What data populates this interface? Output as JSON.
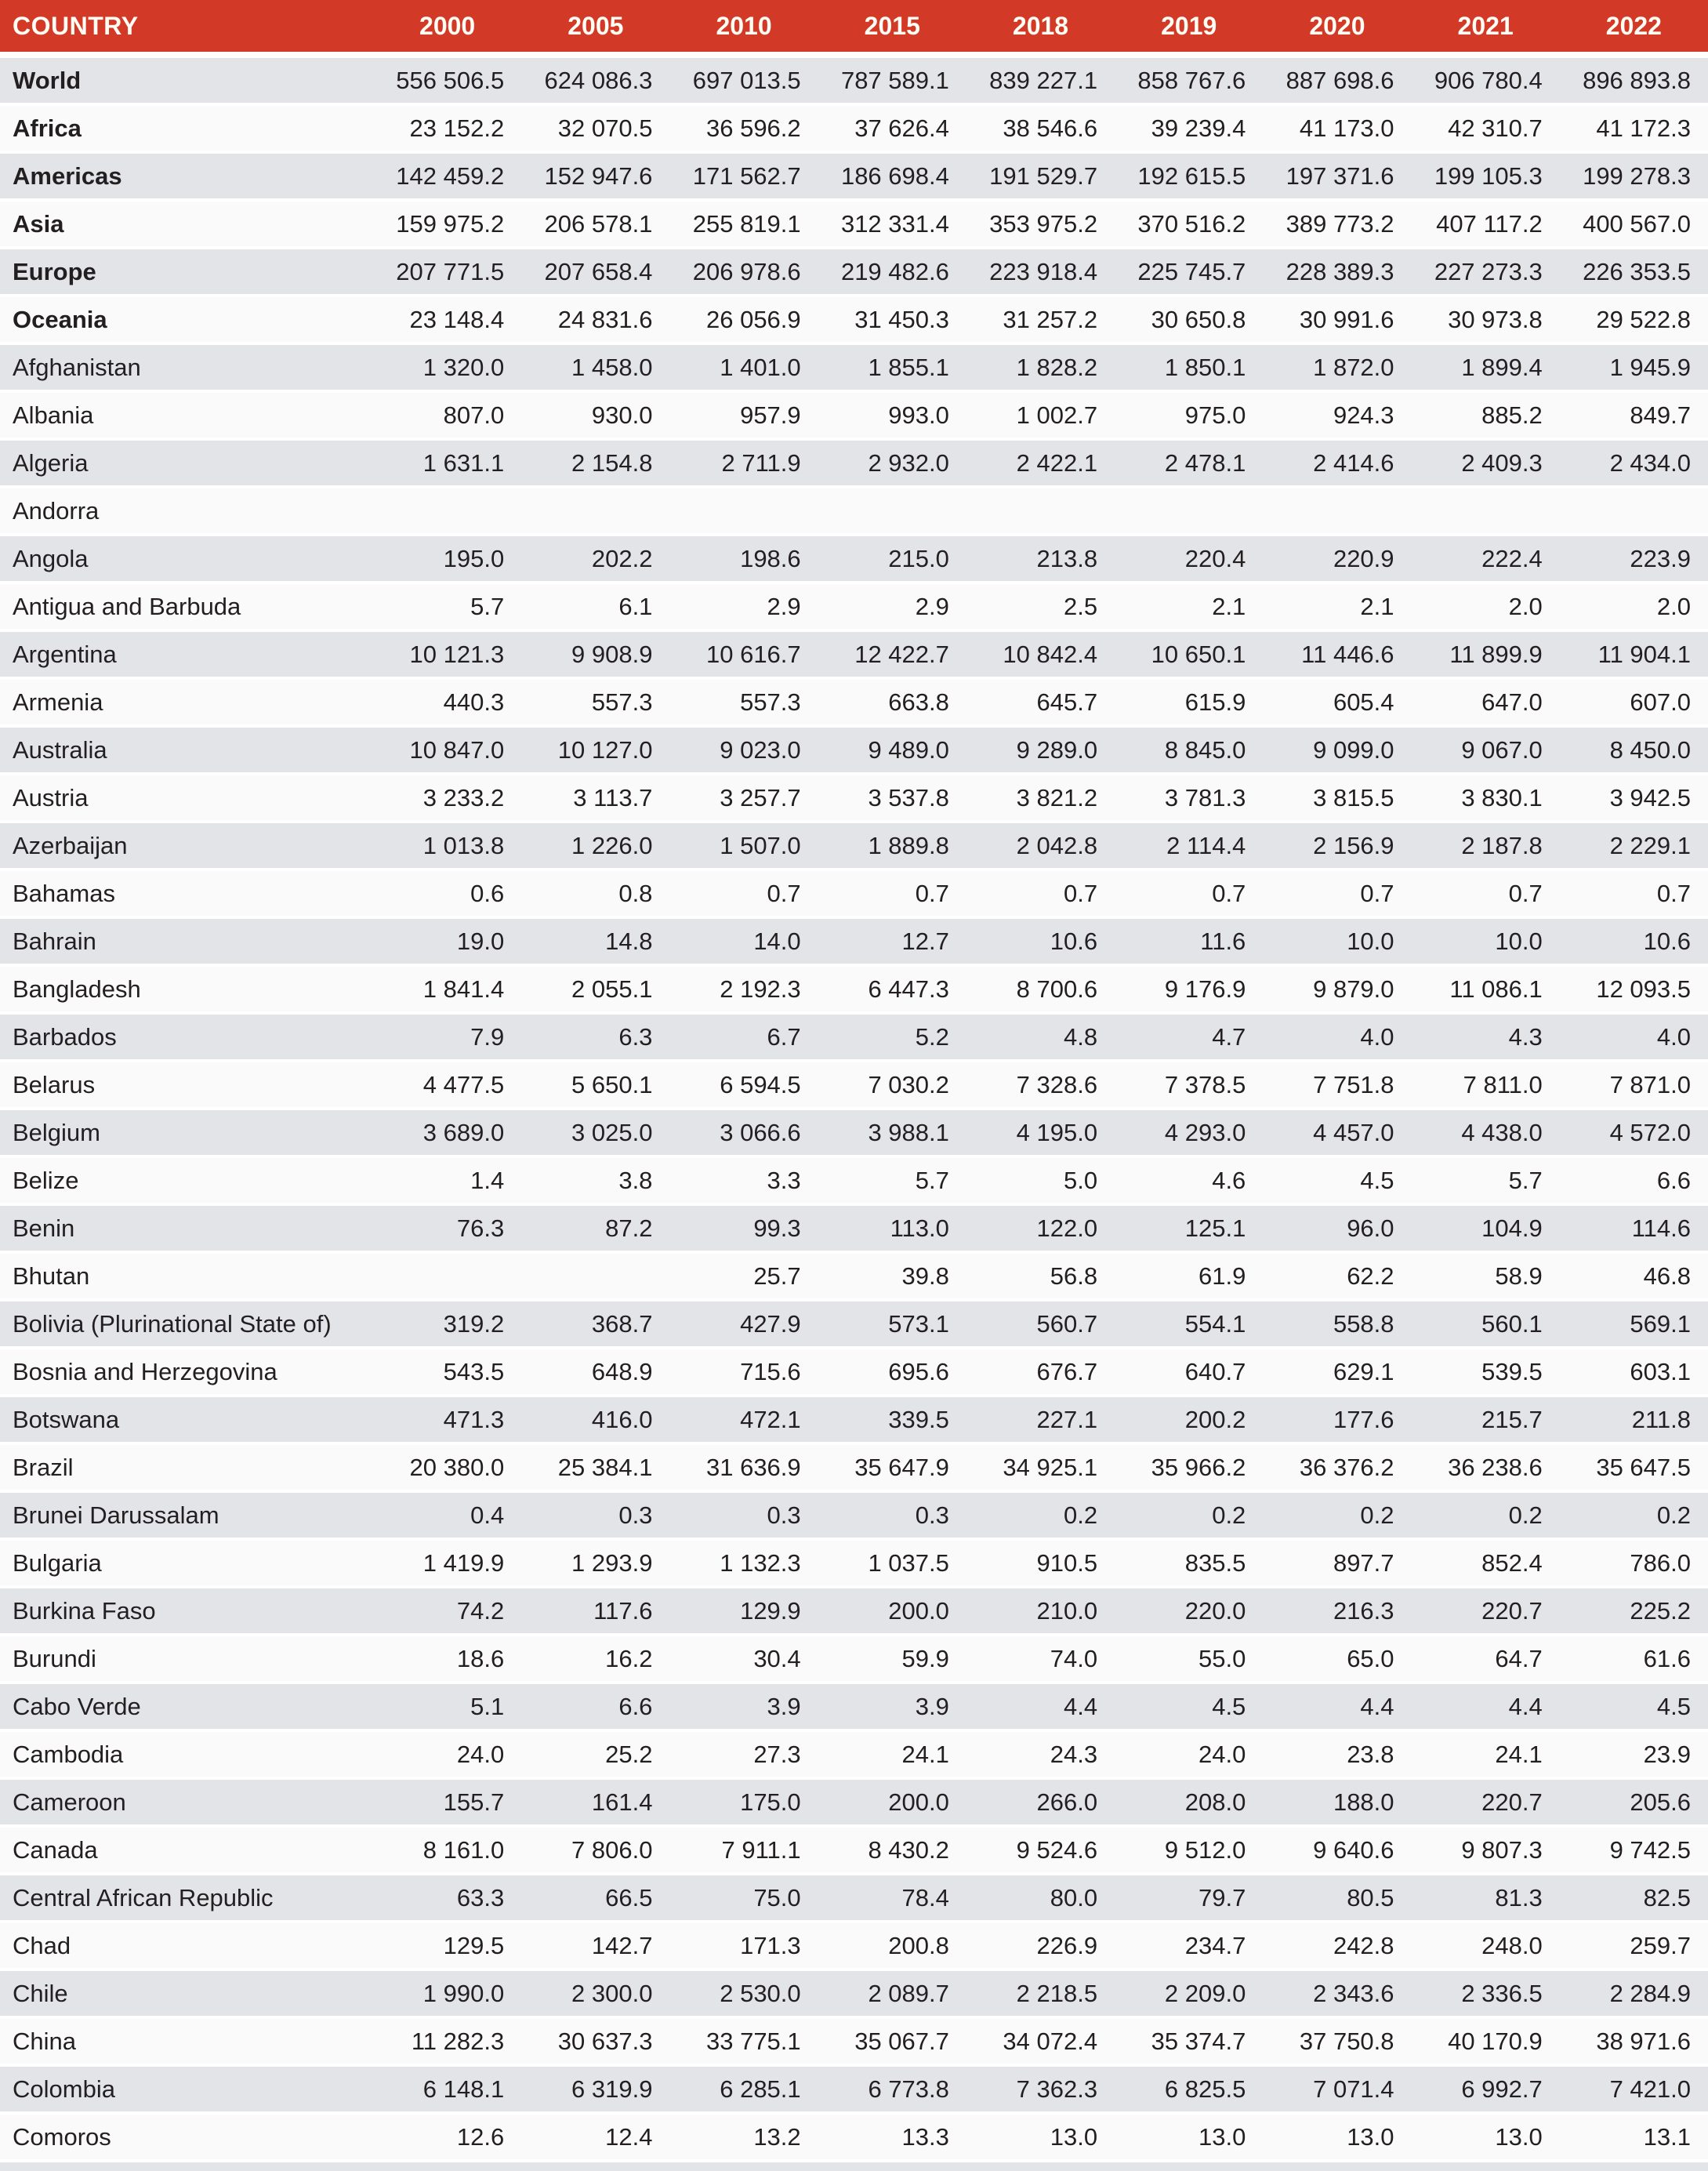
{
  "colors": {
    "header_bg": "#d23a27",
    "header_text": "#fffdf4",
    "row_alt_bg": "#e3e4e8",
    "row_light_bg": "#fafafa",
    "text": "#231f20"
  },
  "table": {
    "header": {
      "country_label": "COUNTRY",
      "years": [
        "2000",
        "2005",
        "2010",
        "2015",
        "2018",
        "2019",
        "2020",
        "2021",
        "2022"
      ]
    },
    "rows": [
      {
        "label": "World",
        "bold": true,
        "values": [
          "556 506.5",
          "624 086.3",
          "697 013.5",
          "787 589.1",
          "839 227.1",
          "858 767.6",
          "887 698.6",
          "906 780.4",
          "896 893.8"
        ]
      },
      {
        "label": "Africa",
        "bold": true,
        "values": [
          "23 152.2",
          "32 070.5",
          "36 596.2",
          "37 626.4",
          "38 546.6",
          "39 239.4",
          "41 173.0",
          "42 310.7",
          "41 172.3"
        ]
      },
      {
        "label": "Americas",
        "bold": true,
        "values": [
          "142 459.2",
          "152 947.6",
          "171 562.7",
          "186 698.4",
          "191 529.7",
          "192 615.5",
          "197 371.6",
          "199 105.3",
          "199 278.3"
        ]
      },
      {
        "label": "Asia",
        "bold": true,
        "values": [
          "159 975.2",
          "206 578.1",
          "255 819.1",
          "312 331.4",
          "353 975.2",
          "370 516.2",
          "389 773.2",
          "407 117.2",
          "400 567.0"
        ]
      },
      {
        "label": "Europe",
        "bold": true,
        "values": [
          "207 771.5",
          "207 658.4",
          "206 978.6",
          "219 482.6",
          "223 918.4",
          "225 745.7",
          "228 389.3",
          "227 273.3",
          "226 353.5"
        ]
      },
      {
        "label": "Oceania",
        "bold": true,
        "values": [
          "23 148.4",
          "24 831.6",
          "26 056.9",
          "31 450.3",
          "31 257.2",
          "30 650.8",
          "30 991.6",
          "30 973.8",
          "29 522.8"
        ]
      },
      {
        "label": "Afghanistan",
        "bold": false,
        "values": [
          "1 320.0",
          "1 458.0",
          "1 401.0",
          "1 855.1",
          "1 828.2",
          "1 850.1",
          "1 872.0",
          "1 899.4",
          "1 945.9"
        ]
      },
      {
        "label": "Albania",
        "bold": false,
        "values": [
          "807.0",
          "930.0",
          "957.9",
          "993.0",
          "1 002.7",
          "975.0",
          "924.3",
          "885.2",
          "849.7"
        ]
      },
      {
        "label": "Algeria",
        "bold": false,
        "values": [
          "1 631.1",
          "2 154.8",
          "2 711.9",
          "2 932.0",
          "2 422.1",
          "2 478.1",
          "2 414.6",
          "2 409.3",
          "2 434.0"
        ]
      },
      {
        "label": "Andorra",
        "bold": false,
        "values": [
          "",
          "",
          "",
          "",
          "",
          "",
          "",
          "",
          ""
        ]
      },
      {
        "label": "Angola",
        "bold": false,
        "values": [
          "195.0",
          "202.2",
          "198.6",
          "215.0",
          "213.8",
          "220.4",
          "220.9",
          "222.4",
          "223.9"
        ]
      },
      {
        "label": "Antigua and Barbuda",
        "bold": false,
        "values": [
          "5.7",
          "6.1",
          "2.9",
          "2.9",
          "2.5",
          "2.1",
          "2.1",
          "2.0",
          "2.0"
        ]
      },
      {
        "label": "Argentina",
        "bold": false,
        "values": [
          "10 121.3",
          "9 908.9",
          "10 616.7",
          "12 422.7",
          "10 842.4",
          "10 650.1",
          "11 446.6",
          "11 899.9",
          "11 904.1"
        ]
      },
      {
        "label": "Armenia",
        "bold": false,
        "values": [
          "440.3",
          "557.3",
          "557.3",
          "663.8",
          "645.7",
          "615.9",
          "605.4",
          "647.0",
          "607.0"
        ]
      },
      {
        "label": "Australia",
        "bold": false,
        "values": [
          "10 847.0",
          "10 127.0",
          "9 023.0",
          "9 489.0",
          "9 289.0",
          "8 845.0",
          "9 099.0",
          "9 067.0",
          "8 450.0"
        ]
      },
      {
        "label": "Austria",
        "bold": false,
        "values": [
          "3 233.2",
          "3 113.7",
          "3 257.7",
          "3 537.8",
          "3 821.2",
          "3 781.3",
          "3 815.5",
          "3 830.1",
          "3 942.5"
        ]
      },
      {
        "label": "Azerbaijan",
        "bold": false,
        "values": [
          "1 013.8",
          "1 226.0",
          "1 507.0",
          "1 889.8",
          "2 042.8",
          "2 114.4",
          "2 156.9",
          "2 187.8",
          "2 229.1"
        ]
      },
      {
        "label": "Bahamas",
        "bold": false,
        "values": [
          "0.6",
          "0.8",
          "0.7",
          "0.7",
          "0.7",
          "0.7",
          "0.7",
          "0.7",
          "0.7"
        ]
      },
      {
        "label": "Bahrain",
        "bold": false,
        "values": [
          "19.0",
          "14.8",
          "14.0",
          "12.7",
          "10.6",
          "11.6",
          "10.0",
          "10.0",
          "10.6"
        ]
      },
      {
        "label": "Bangladesh",
        "bold": false,
        "values": [
          "1 841.4",
          "2 055.1",
          "2 192.3",
          "6 447.3",
          "8 700.6",
          "9 176.9",
          "9 879.0",
          "11 086.1",
          "12 093.5"
        ]
      },
      {
        "label": "Barbados",
        "bold": false,
        "values": [
          "7.9",
          "6.3",
          "6.7",
          "5.2",
          "4.8",
          "4.7",
          "4.0",
          "4.3",
          "4.0"
        ]
      },
      {
        "label": "Belarus",
        "bold": false,
        "values": [
          "4 477.5",
          "5 650.1",
          "6 594.5",
          "7 030.2",
          "7 328.6",
          "7 378.5",
          "7 751.8",
          "7 811.0",
          "7 871.0"
        ]
      },
      {
        "label": "Belgium",
        "bold": false,
        "values": [
          "3 689.0",
          "3 025.0",
          "3 066.6",
          "3 988.1",
          "4 195.0",
          "4 293.0",
          "4 457.0",
          "4 438.0",
          "4 572.0"
        ]
      },
      {
        "label": "Belize",
        "bold": false,
        "values": [
          "1.4",
          "3.8",
          "3.3",
          "5.7",
          "5.0",
          "4.6",
          "4.5",
          "5.7",
          "6.6"
        ]
      },
      {
        "label": "Benin",
        "bold": false,
        "values": [
          "76.3",
          "87.2",
          "99.3",
          "113.0",
          "122.0",
          "125.1",
          "96.0",
          "104.9",
          "114.6"
        ]
      },
      {
        "label": "Bhutan",
        "bold": false,
        "values": [
          "",
          "",
          "25.7",
          "39.8",
          "56.8",
          "61.9",
          "62.2",
          "58.9",
          "46.8"
        ]
      },
      {
        "label": "Bolivia (Plurinational State of)",
        "bold": false,
        "values": [
          "319.2",
          "368.7",
          "427.9",
          "573.1",
          "560.7",
          "554.1",
          "558.8",
          "560.1",
          "569.1"
        ]
      },
      {
        "label": "Bosnia and Herzegovina",
        "bold": false,
        "values": [
          "543.5",
          "648.9",
          "715.6",
          "695.6",
          "676.7",
          "640.7",
          "629.1",
          "539.5",
          "603.1"
        ]
      },
      {
        "label": "Botswana",
        "bold": false,
        "values": [
          "471.3",
          "416.0",
          "472.1",
          "339.5",
          "227.1",
          "200.2",
          "177.6",
          "215.7",
          "211.8"
        ]
      },
      {
        "label": "Brazil",
        "bold": false,
        "values": [
          "20 380.0",
          "25 384.1",
          "31 636.9",
          "35 647.9",
          "34 925.1",
          "35 966.2",
          "36 376.2",
          "36 238.6",
          "35 647.5"
        ]
      },
      {
        "label": "Brunei Darussalam",
        "bold": false,
        "values": [
          "0.4",
          "0.3",
          "0.3",
          "0.3",
          "0.2",
          "0.2",
          "0.2",
          "0.2",
          "0.2"
        ]
      },
      {
        "label": "Bulgaria",
        "bold": false,
        "values": [
          "1 419.9",
          "1 293.9",
          "1 132.3",
          "1 037.5",
          "910.5",
          "835.5",
          "897.7",
          "852.4",
          "786.0"
        ]
      },
      {
        "label": "Burkina Faso",
        "bold": false,
        "values": [
          "74.2",
          "117.6",
          "129.9",
          "200.0",
          "210.0",
          "220.0",
          "216.3",
          "220.7",
          "225.2"
        ]
      },
      {
        "label": "Burundi",
        "bold": false,
        "values": [
          "18.6",
          "16.2",
          "30.4",
          "59.9",
          "74.0",
          "55.0",
          "65.0",
          "64.7",
          "61.6"
        ]
      },
      {
        "label": "Cabo Verde",
        "bold": false,
        "values": [
          "5.1",
          "6.6",
          "3.9",
          "3.9",
          "4.4",
          "4.5",
          "4.4",
          "4.4",
          "4.5"
        ]
      },
      {
        "label": "Cambodia",
        "bold": false,
        "values": [
          "24.0",
          "25.2",
          "27.3",
          "24.1",
          "24.3",
          "24.0",
          "23.8",
          "24.1",
          "23.9"
        ]
      },
      {
        "label": "Cameroon",
        "bold": false,
        "values": [
          "155.7",
          "161.4",
          "175.0",
          "200.0",
          "266.0",
          "208.0",
          "188.0",
          "220.7",
          "205.6"
        ]
      },
      {
        "label": "Canada",
        "bold": false,
        "values": [
          "8 161.0",
          "7 806.0",
          "7 911.1",
          "8 430.2",
          "9 524.6",
          "9 512.0",
          "9 640.6",
          "9 807.3",
          "9 742.5"
        ]
      },
      {
        "label": "Central African Republic",
        "bold": false,
        "values": [
          "63.3",
          "66.5",
          "75.0",
          "78.4",
          "80.0",
          "79.7",
          "80.5",
          "81.3",
          "82.5"
        ]
      },
      {
        "label": "Chad",
        "bold": false,
        "values": [
          "129.5",
          "142.7",
          "171.3",
          "200.8",
          "226.9",
          "234.7",
          "242.8",
          "248.0",
          "259.7"
        ]
      },
      {
        "label": "Chile",
        "bold": false,
        "values": [
          "1 990.0",
          "2 300.0",
          "2 530.0",
          "2 089.7",
          "2 218.5",
          "2 209.0",
          "2 343.6",
          "2 336.5",
          "2 284.9"
        ]
      },
      {
        "label": "China",
        "bold": false,
        "values": [
          "11 282.3",
          "30 637.3",
          "33 775.1",
          "35 067.7",
          "34 072.4",
          "35 374.7",
          "37 750.8",
          "40 170.9",
          "38 971.6"
        ]
      },
      {
        "label": "Colombia",
        "bold": false,
        "values": [
          "6 148.1",
          "6 319.9",
          "6 285.1",
          "6 773.8",
          "7 362.3",
          "6 825.5",
          "7 071.4",
          "6 992.7",
          "7 421.0"
        ]
      },
      {
        "label": "Comoros",
        "bold": false,
        "values": [
          "12.6",
          "12.4",
          "13.2",
          "13.3",
          "13.0",
          "13.0",
          "13.0",
          "13.0",
          "13.1"
        ]
      }
    ]
  }
}
